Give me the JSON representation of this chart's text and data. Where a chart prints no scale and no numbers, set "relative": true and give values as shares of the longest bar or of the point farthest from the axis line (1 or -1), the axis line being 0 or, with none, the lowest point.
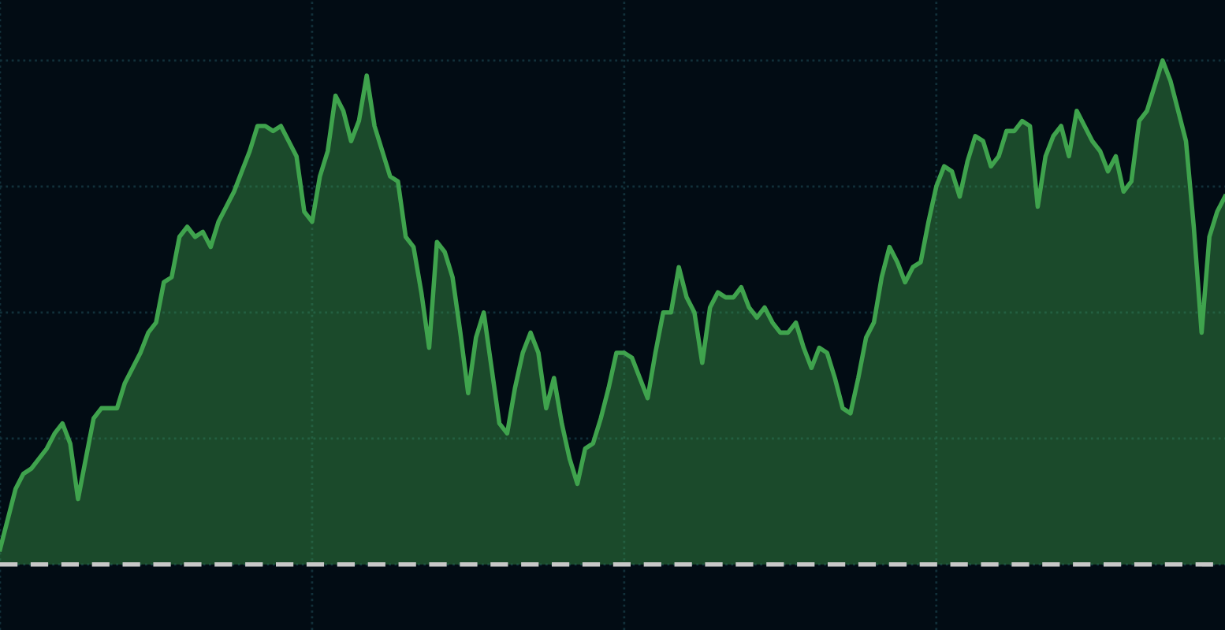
{
  "chart_data": {
    "type": "area",
    "relative": true,
    "grid": true,
    "categories": [
      null,
      null,
      null,
      null,
      null,
      null,
      null,
      null,
      null,
      null,
      null,
      null,
      null,
      null,
      null,
      null,
      null,
      null,
      null,
      null,
      null,
      null,
      null,
      null,
      null,
      null,
      null,
      null,
      null,
      null,
      null,
      null,
      null,
      null,
      null,
      null,
      null,
      null,
      null,
      null,
      null,
      null,
      null,
      null,
      null,
      null,
      null,
      null,
      null,
      null,
      null,
      null,
      null,
      null,
      null,
      null,
      null,
      null,
      null,
      null,
      null,
      null,
      null,
      null,
      null,
      null,
      null,
      null,
      null,
      null,
      null,
      null,
      null,
      null,
      null,
      null,
      null,
      null,
      null,
      null,
      null,
      null,
      null,
      null,
      null,
      null,
      null,
      null,
      null,
      null,
      null,
      null,
      null,
      null,
      null,
      null,
      null,
      null,
      null,
      null,
      null,
      null,
      null,
      null,
      null,
      null,
      null,
      null,
      null,
      null,
      null,
      null,
      null,
      null,
      null,
      null,
      null,
      null,
      null,
      null,
      null,
      null,
      null,
      null,
      null,
      null,
      null,
      null,
      null,
      null,
      null,
      null,
      null,
      null,
      null,
      null,
      null,
      null,
      null,
      null,
      null,
      null,
      null,
      null,
      null,
      null,
      null,
      null,
      null,
      null,
      null,
      null,
      null,
      null,
      null,
      null,
      null,
      null
    ],
    "series": [
      {
        "color": "#3fa34d",
        "values": [
          0.03,
          0.09,
          0.15,
          0.18,
          0.19,
          0.21,
          0.23,
          0.26,
          0.28,
          0.24,
          0.13,
          0.21,
          0.29,
          0.31,
          0.31,
          0.31,
          0.36,
          0.39,
          0.42,
          0.46,
          0.48,
          0.56,
          0.57,
          0.65,
          0.67,
          0.65,
          0.66,
          0.63,
          0.68,
          0.71,
          0.74,
          0.78,
          0.82,
          0.87,
          0.87,
          0.86,
          0.87,
          0.84,
          0.81,
          0.7,
          0.68,
          0.77,
          0.82,
          0.93,
          0.9,
          0.84,
          0.88,
          0.97,
          0.87,
          0.82,
          0.77,
          0.76,
          0.65,
          0.63,
          0.54,
          0.43,
          0.64,
          0.62,
          0.57,
          0.46,
          0.34,
          0.45,
          0.5,
          0.39,
          0.28,
          0.26,
          0.35,
          0.42,
          0.46,
          0.42,
          0.31,
          0.37,
          0.28,
          0.21,
          0.16,
          0.23,
          0.24,
          0.29,
          0.35,
          0.42,
          0.42,
          0.41,
          0.37,
          0.33,
          0.42,
          0.5,
          0.5,
          0.59,
          0.53,
          0.5,
          0.4,
          0.51,
          0.54,
          0.53,
          0.53,
          0.55,
          0.51,
          0.49,
          0.51,
          0.48,
          0.46,
          0.46,
          0.48,
          0.43,
          0.39,
          0.43,
          0.42,
          0.37,
          0.31,
          0.3,
          0.37,
          0.45,
          0.48,
          0.57,
          0.63,
          0.6,
          0.56,
          0.59,
          0.6,
          0.68,
          0.75,
          0.79,
          0.78,
          0.73,
          0.8,
          0.85,
          0.84,
          0.79,
          0.81,
          0.86,
          0.86,
          0.88,
          0.87,
          0.71,
          0.81,
          0.85,
          0.87,
          0.81,
          0.9,
          0.87,
          0.84,
          0.82,
          0.78,
          0.81,
          0.74,
          0.76,
          0.88,
          0.9,
          0.95,
          1,
          0.96,
          0.9,
          0.84,
          0.67,
          0.46,
          0.65,
          0.7,
          0.73
        ]
      }
    ],
    "ref_lines": [
      {
        "axis": "y",
        "value": 0,
        "line_style": "dashed",
        "color": "#c8c8c8"
      }
    ]
  }
}
